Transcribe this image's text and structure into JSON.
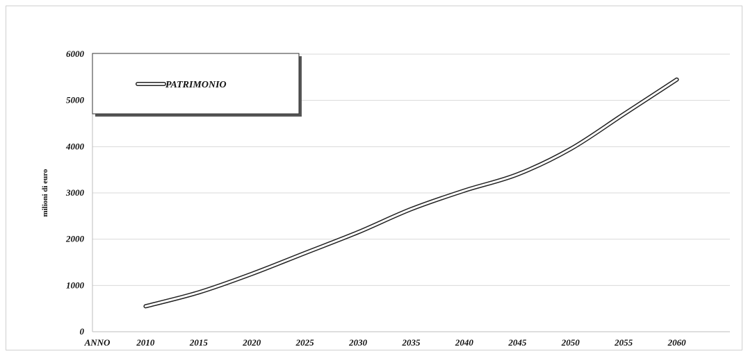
{
  "chart_data": {
    "type": "line",
    "title": "",
    "xlabel": "",
    "ylabel": "milioni di euro",
    "category_label": "ANNO",
    "categories": [
      "2010",
      "2015",
      "2020",
      "2025",
      "2030",
      "2035",
      "2040",
      "2045",
      "2050",
      "2055",
      "2060"
    ],
    "xlim": [
      2005,
      2065
    ],
    "ylim": [
      0,
      6000
    ],
    "yticks": [
      "0",
      "1000",
      "2000",
      "3000",
      "4000",
      "5000",
      "6000"
    ],
    "grid": true,
    "legend": {
      "position": "top-left",
      "entries": [
        "PATRIMONIO"
      ]
    },
    "series": [
      {
        "name": "PATRIMONIO",
        "x": [
          2010,
          2015,
          2020,
          2025,
          2030,
          2035,
          2040,
          2045,
          2050,
          2055,
          2060
        ],
        "values": [
          550,
          850,
          1250,
          1700,
          2150,
          2650,
          3050,
          3400,
          3950,
          4700,
          5450
        ]
      }
    ]
  }
}
